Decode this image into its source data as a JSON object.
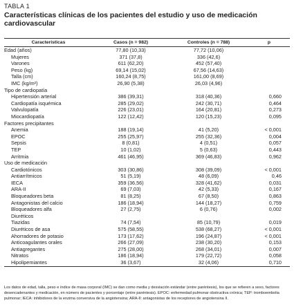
{
  "header": {
    "number": "TABLA 1",
    "title": "Características clínicas de los pacientes del estudio y uso de medicación cardiovascular"
  },
  "table": {
    "columns": [
      "Características",
      "Casos (n = 982)",
      "Controles (n = 788)",
      "p"
    ],
    "groups": [
      {
        "rows": [
          [
            "Edad (años)",
            "77,80 (10,33)",
            "77,72 (10,06)"
          ],
          [
            "Mujeres",
            "371 (37,8)",
            "336 (42,6)"
          ],
          [
            "Varones",
            "611 (62,20)",
            "452 (57,40)"
          ],
          [
            "Peso (kg)",
            "69,14 (15,02)",
            "67,56 (14,63)"
          ],
          [
            "Talla (cm)",
            "160,24 (8,75)",
            "161,00 (8,69)"
          ],
          [
            "IMC (kg/m²)",
            "26,90 (5,38)",
            "26,03 (4,96)"
          ]
        ]
      },
      {
        "title": "Tipo de cardiopatía",
        "rows": [
          [
            "Hipertensión arterial",
            "386 (39,31)",
            "318 (40,36)",
            "0,660"
          ],
          [
            "Cardiopatía isquémica",
            "285 (29,02)",
            "242 (30,71)",
            "0,464"
          ],
          [
            "Valvulopatía",
            "226 (23,01)",
            "164 (20,81)",
            "0,273"
          ],
          [
            "Miocardiopatía",
            "122 (12,42)",
            "120 (15,23)",
            "0,095"
          ]
        ]
      },
      {
        "title": "Factores precipitantes",
        "rows": [
          [
            "Anemia",
            "188 (19,14)",
            "41 (5,20)",
            "< 0,001"
          ],
          [
            "EPOC",
            "255 (25,97)",
            "255 (32,36)",
            "0,004"
          ],
          [
            "Sepsis",
            "8 (0,81)",
            "4 (0,51)",
            "0,057"
          ],
          [
            "TEP",
            "10 (1,02)",
            "5 (0,63)",
            "0,443"
          ],
          [
            "Arritmia",
            "461 (46,95)",
            "369 (46,83)",
            "0,962"
          ]
        ]
      },
      {
        "title": "Uso de medicación",
        "rows": [
          [
            "Cardiotónicos",
            "303 (30,86)",
            "308 (39,09)",
            "< 0,001"
          ],
          [
            "Antiarrítmicos",
            "51 (5,19)",
            "48 (6,09)",
            "0,46"
          ],
          [
            "IECA",
            "359 (36,56)",
            "328 (41,62)",
            "0,031"
          ],
          [
            "ARA-II",
            "69 (7,03)",
            "42 (5,33)",
            "0,167"
          ],
          [
            "Bloqueadores beta",
            "81 (8,25)",
            "67 (8,50)",
            "0,863"
          ],
          [
            "Antagonistas del calcio",
            "186 (18,94)",
            "144 (18,27)",
            "0,759"
          ],
          [
            "Bloqueadores alfa",
            "27 (2,75)",
            "6 (0,76)",
            "0,002"
          ],
          [
            "Diuréticos"
          ],
          [
            "Tiazidas",
            "74 (7,54)",
            "85 (10,79)",
            "0,019"
          ],
          [
            "Diuréticos de asa",
            "575 (58,55)",
            "538 (68,27)",
            "< 0,001"
          ],
          [
            "Ahorradores de potasio",
            "173 (17,62)",
            "196 (24,87)",
            "< 0,001"
          ],
          [
            "Anticoagulantes orales",
            "266 (27,09)",
            "238 (30,20)",
            "0,153"
          ],
          [
            "Antiagregantes",
            "275 (28,00)",
            "268 (34,01)",
            "0,007"
          ],
          [
            "Nitratos",
            "186 (18,94)",
            "179 (22,72)",
            "0,058"
          ],
          [
            "Hipolipemiantes",
            "36 (3,67)",
            "32 (4,06)",
            "0,710"
          ]
        ]
      }
    ]
  },
  "footnote": "Los datos de edad, talla, peso e índice de masa corporal (IMC) se dan como media y desviación estándar (entre paréntesis), los que se refieren a sexo, factores desencadenantes y medicación, en número de pacientes y porcentaje (entre paréntesis). EPOC: enfermedad pulmonar obstructiva crónica; TEP: tromboembolia pulmonar; IECA: inhibidores de la enzima conversiva de la angiotensina; ARA-II: antagonistas de los receptores de angiotensina II."
}
